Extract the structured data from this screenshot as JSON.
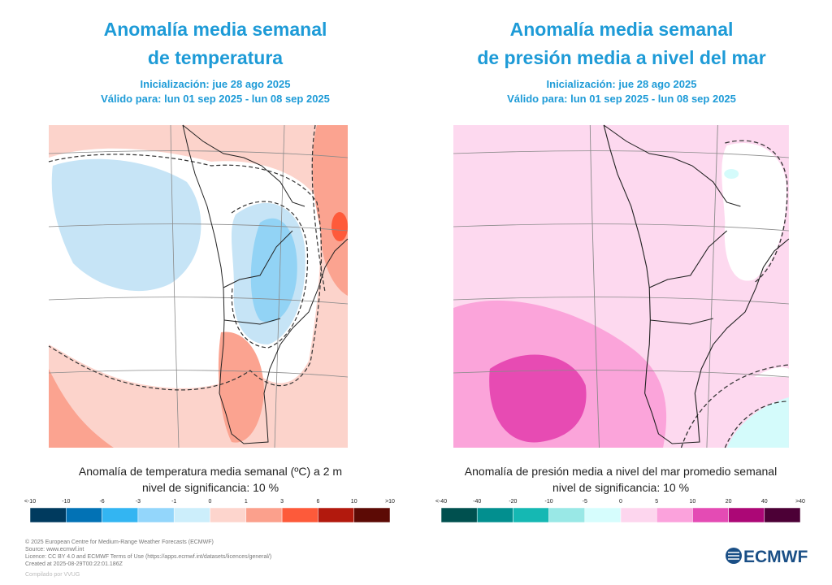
{
  "panels": [
    {
      "title_lines": [
        "Anomalía media semanal",
        "de temperatura"
      ],
      "initialization": "Inicialización: jue 28 ago 2025",
      "valid": "Válido para: lun 01 sep 2025 - lun 08 sep 2025",
      "caption_lines": [
        "Anomalía de temperatura media semanal (ºC) a 2 m",
        "nivel de significancia: 10 %"
      ],
      "colorbar": {
        "labels": [
          "<-10",
          "-10",
          "-6",
          "-3",
          "-1",
          "0",
          "1",
          "3",
          "6",
          "10",
          ">10"
        ],
        "colors": [
          "#003a5e",
          "#0272b5",
          "#33b5f2",
          "#93d6fb",
          "#cceefb",
          "#fdd5cd",
          "#fba08c",
          "#fd5a3a",
          "#b2190d",
          "#5c0a05"
        ]
      }
    },
    {
      "title_lines": [
        "Anomalía media semanal",
        "de presión media a nivel del mar"
      ],
      "initialization": "Inicialización: jue 28 ago 2025",
      "valid": "Válido para: lun 01 sep 2025 - lun 08 sep 2025",
      "caption_lines": [
        "Anomalía de presión media a nivel del mar promedio semanal",
        "nivel de significancia: 10 %"
      ],
      "colorbar": {
        "labels": [
          "<-40",
          "-40",
          "-20",
          "-10",
          "-5",
          "0",
          "5",
          "10",
          "20",
          "40",
          ">40"
        ],
        "colors": [
          "#00504f",
          "#028f8f",
          "#15b8b3",
          "#99e8e6",
          "#d6fdfd",
          "#fdd6ee",
          "#fba2dc",
          "#e44bb4",
          "#ac0776",
          "#4c0036"
        ]
      }
    }
  ],
  "footer": {
    "lines": [
      "© 2025 European Centre for Medium-Range Weather Forecasts (ECMWF)",
      "Source: www.ecmwf.int",
      "Licence: CC BY 4.0 and ECMWF Terms of Use (https://apps.ecmwf.int/datasets/licences/general/)",
      "Created at 2025-08-29T00:22:01.186Z"
    ],
    "compiled": "Compilado por VVUG"
  },
  "logo": "ECMWF"
}
